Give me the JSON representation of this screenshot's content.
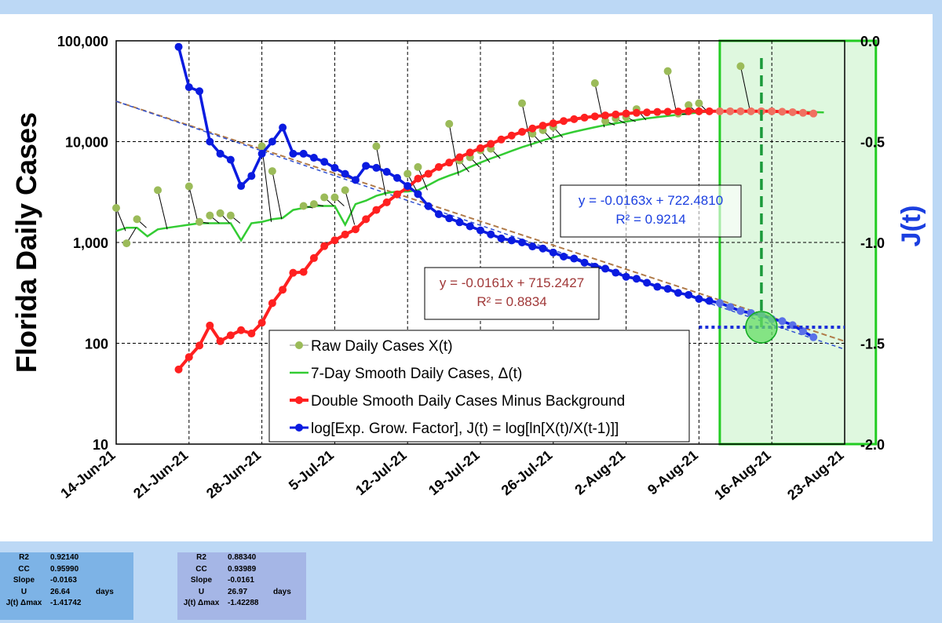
{
  "chart_data": {
    "type": "line",
    "title": "",
    "ylabel": "Florida Daily Cases",
    "ylabel_right": "J(t)",
    "yscale": "log",
    "ylim": [
      10,
      100000
    ],
    "ylim_right": [
      -2.0,
      0.0
    ],
    "grid": true,
    "legend_placement": "bottom-center",
    "colors": {
      "raw": "#9bbb59",
      "smooth7": "#33cc33",
      "double": "#ff2020",
      "jt": "#0a1be0",
      "fit_red": "#a04040",
      "fit_blue": "#1030c0",
      "highlight": "#b8f0b8"
    },
    "x_tick_labels": [
      "14-Jun-21",
      "21-Jun-21",
      "28-Jun-21",
      "5-Jul-21",
      "12-Jul-21",
      "19-Jul-21",
      "26-Jul-21",
      "2-Aug-21",
      "9-Aug-21",
      "16-Aug-21",
      "23-Aug-21"
    ],
    "y_tick_labels": [
      "10",
      "100",
      "1,000",
      "10,000",
      "100,000"
    ],
    "y_tick_values": [
      10,
      100,
      1000,
      10000,
      100000
    ],
    "y2_tick_labels": [
      "-2.0",
      "-1.5",
      "-1.0",
      "-0.5",
      "0.0"
    ],
    "y2_tick_values": [
      -2.0,
      -1.5,
      -1.0,
      -0.5,
      0.0
    ],
    "x_start": "2021-06-14",
    "x_end": "2021-08-23",
    "highlight_region": [
      "2021-08-11",
      "2021-08-26"
    ],
    "series": [
      {
        "name": "Raw Daily Cases X(t)",
        "x": [
          "2021-06-14",
          "2021-06-15",
          "2021-06-16",
          "2021-06-18",
          "2021-06-21",
          "2021-06-22",
          "2021-06-23",
          "2021-06-24",
          "2021-06-25",
          "2021-06-28",
          "2021-06-29",
          "2021-07-02",
          "2021-07-03",
          "2021-07-04",
          "2021-07-05",
          "2021-07-06",
          "2021-07-09",
          "2021-07-12",
          "2021-07-13",
          "2021-07-16",
          "2021-07-17",
          "2021-07-18",
          "2021-07-19",
          "2021-07-20",
          "2021-07-23",
          "2021-07-24",
          "2021-07-25",
          "2021-07-26",
          "2021-07-30",
          "2021-07-31",
          "2021-08-01",
          "2021-08-02",
          "2021-08-03",
          "2021-08-06",
          "2021-08-07",
          "2021-08-08",
          "2021-08-09",
          "2021-08-13"
        ],
        "values": [
          2200,
          980,
          1700,
          3300,
          3600,
          1600,
          1850,
          1950,
          1850,
          9000,
          5100,
          2300,
          2400,
          2800,
          2800,
          3300,
          9000,
          4800,
          5600,
          15000,
          6500,
          7000,
          8200,
          8500,
          24000,
          12000,
          13000,
          14000,
          38000,
          16000,
          17000,
          17500,
          21000,
          50000,
          19000,
          23000,
          24000,
          56000
        ]
      },
      {
        "name": "7-Day Smooth Daily Cases, Δ(t)",
        "x": [
          "2021-06-14",
          "2021-06-15",
          "2021-06-16",
          "2021-06-17",
          "2021-06-18",
          "2021-06-19",
          "2021-06-20",
          "2021-06-21",
          "2021-06-22",
          "2021-06-23",
          "2021-06-24",
          "2021-06-25",
          "2021-06-26",
          "2021-06-27",
          "2021-06-28",
          "2021-06-29",
          "2021-06-30",
          "2021-07-01",
          "2021-07-02",
          "2021-07-03",
          "2021-07-04",
          "2021-07-05",
          "2021-07-06",
          "2021-07-07",
          "2021-07-08",
          "2021-07-09",
          "2021-07-10",
          "2021-07-11",
          "2021-07-12",
          "2021-07-13",
          "2021-07-14",
          "2021-07-15",
          "2021-07-16",
          "2021-07-17",
          "2021-07-18",
          "2021-07-19",
          "2021-07-20",
          "2021-07-21",
          "2021-07-22",
          "2021-07-23",
          "2021-07-24",
          "2021-07-25",
          "2021-07-26",
          "2021-07-27",
          "2021-07-28",
          "2021-07-29",
          "2021-07-30",
          "2021-07-31",
          "2021-08-01",
          "2021-08-02",
          "2021-08-03",
          "2021-08-04",
          "2021-08-05",
          "2021-08-06",
          "2021-08-07",
          "2021-08-08",
          "2021-08-09",
          "2021-08-10",
          "2021-08-11",
          "2021-08-12",
          "2021-08-13",
          "2021-08-14",
          "2021-08-15",
          "2021-08-16",
          "2021-08-17",
          "2021-08-18",
          "2021-08-19",
          "2021-08-20",
          "2021-08-21"
        ],
        "values": [
          1300,
          1400,
          1400,
          1150,
          1350,
          1400,
          1450,
          1500,
          1550,
          1550,
          1550,
          1550,
          1050,
          1550,
          1600,
          1700,
          1750,
          2100,
          2200,
          2300,
          2300,
          2300,
          1500,
          2400,
          2600,
          2900,
          3100,
          3200,
          3200,
          3300,
          3700,
          4200,
          4600,
          5000,
          5600,
          6200,
          6800,
          7400,
          8100,
          8800,
          9500,
          10300,
          11000,
          11800,
          12500,
          13200,
          13900,
          14600,
          15200,
          15800,
          16400,
          17000,
          17500,
          18000,
          18500,
          19000,
          19500,
          19800,
          20000,
          20100,
          20200,
          20200,
          20100,
          20000,
          19900,
          19800,
          19700,
          19600,
          19500
        ]
      },
      {
        "name": "Double Smooth Daily Cases Minus Background",
        "x": [
          "2021-06-20",
          "2021-06-21",
          "2021-06-22",
          "2021-06-23",
          "2021-06-24",
          "2021-06-25",
          "2021-06-26",
          "2021-06-27",
          "2021-06-28",
          "2021-06-29",
          "2021-06-30",
          "2021-07-01",
          "2021-07-02",
          "2021-07-03",
          "2021-07-04",
          "2021-07-05",
          "2021-07-06",
          "2021-07-07",
          "2021-07-08",
          "2021-07-09",
          "2021-07-10",
          "2021-07-11",
          "2021-07-12",
          "2021-07-13",
          "2021-07-14",
          "2021-07-15",
          "2021-07-16",
          "2021-07-17",
          "2021-07-18",
          "2021-07-19",
          "2021-07-20",
          "2021-07-21",
          "2021-07-22",
          "2021-07-23",
          "2021-07-24",
          "2021-07-25",
          "2021-07-26",
          "2021-07-27",
          "2021-07-28",
          "2021-07-29",
          "2021-07-30",
          "2021-07-31",
          "2021-08-01",
          "2021-08-02",
          "2021-08-03",
          "2021-08-04",
          "2021-08-05",
          "2021-08-06",
          "2021-08-07",
          "2021-08-08",
          "2021-08-09",
          "2021-08-10",
          "2021-08-11",
          "2021-08-12",
          "2021-08-13",
          "2021-08-14",
          "2021-08-15",
          "2021-08-16",
          "2021-08-17",
          "2021-08-18",
          "2021-08-19",
          "2021-08-20"
        ],
        "values": [
          55,
          73,
          95,
          150,
          105,
          120,
          135,
          125,
          160,
          250,
          340,
          500,
          510,
          700,
          920,
          1050,
          1200,
          1350,
          1700,
          2100,
          2500,
          3000,
          3500,
          4300,
          4800,
          5600,
          6200,
          7000,
          7800,
          8600,
          9500,
          10500,
          11500,
          12500,
          13500,
          14400,
          15200,
          16000,
          16700,
          17300,
          17800,
          18200,
          18600,
          19000,
          19300,
          19500,
          19700,
          19800,
          19900,
          20000,
          20000,
          20000,
          20000,
          20000,
          20000,
          20000,
          20000,
          20000,
          19800,
          19600,
          19300,
          19000
        ]
      },
      {
        "name": "log[Exp. Grow. Factor], J(t) = log[ln[X(t)/X(t-1)]]",
        "x": [
          "2021-06-20",
          "2021-06-21",
          "2021-06-22",
          "2021-06-23",
          "2021-06-24",
          "2021-06-25",
          "2021-06-26",
          "2021-06-27",
          "2021-06-28",
          "2021-06-29",
          "2021-06-30",
          "2021-07-01",
          "2021-07-02",
          "2021-07-03",
          "2021-07-04",
          "2021-07-05",
          "2021-07-06",
          "2021-07-07",
          "2021-07-08",
          "2021-07-09",
          "2021-07-10",
          "2021-07-11",
          "2021-07-12",
          "2021-07-13",
          "2021-07-14",
          "2021-07-15",
          "2021-07-16",
          "2021-07-17",
          "2021-07-18",
          "2021-07-19",
          "2021-07-20",
          "2021-07-21",
          "2021-07-22",
          "2021-07-23",
          "2021-07-24",
          "2021-07-25",
          "2021-07-26",
          "2021-07-27",
          "2021-07-28",
          "2021-07-29",
          "2021-07-30",
          "2021-07-31",
          "2021-08-01",
          "2021-08-02",
          "2021-08-03",
          "2021-08-04",
          "2021-08-05",
          "2021-08-06",
          "2021-08-07",
          "2021-08-08",
          "2021-08-09",
          "2021-08-10",
          "2021-08-11",
          "2021-08-12",
          "2021-08-13",
          "2021-08-14",
          "2021-08-15",
          "2021-08-16",
          "2021-08-17",
          "2021-08-18",
          "2021-08-19",
          "2021-08-20"
        ],
        "values": [
          -0.03,
          -0.23,
          -0.25,
          -0.5,
          -0.56,
          -0.59,
          -0.72,
          -0.67,
          -0.56,
          -0.5,
          -0.43,
          -0.56,
          -0.56,
          -0.58,
          -0.6,
          -0.63,
          -0.66,
          -0.69,
          -0.62,
          -0.63,
          -0.65,
          -0.68,
          -0.72,
          -0.76,
          -0.82,
          -0.86,
          -0.88,
          -0.9,
          -0.92,
          -0.94,
          -0.96,
          -0.98,
          -0.99,
          -1.0,
          -1.02,
          -1.03,
          -1.05,
          -1.07,
          -1.08,
          -1.1,
          -1.12,
          -1.13,
          -1.15,
          -1.17,
          -1.18,
          -1.2,
          -1.22,
          -1.23,
          -1.25,
          -1.26,
          -1.28,
          -1.29,
          -1.3,
          -1.32,
          -1.34,
          -1.35,
          -1.36,
          -1.38,
          -1.39,
          -1.41,
          -1.44,
          -1.47
        ]
      }
    ],
    "fit_lines": [
      {
        "equation": "y = -0.0163x + 722.4810",
        "r2": "R² = 0.9214"
      },
      {
        "equation": "y = -0.0161x + 715.2427",
        "r2": "R² = 0.8834"
      }
    ],
    "fit_line_endpoints": {
      "blue": [
        -0.3,
        -1.53
      ],
      "red": [
        -0.3,
        -1.49
      ]
    },
    "annotations": {
      "jmax_level": -1.42,
      "crossing_date": "2021-08-15"
    }
  },
  "stats_tables": [
    {
      "rows": [
        {
          "k": "R2",
          "v": "0.92140",
          "u": ""
        },
        {
          "k": "CC",
          "v": "0.95990",
          "u": ""
        },
        {
          "k": "Slope",
          "v": "-0.0163",
          "u": ""
        },
        {
          "k": "U",
          "v": "26.64",
          "u": "days"
        },
        {
          "k": "J(t) Δmax",
          "v": "-1.41742",
          "u": ""
        }
      ]
    },
    {
      "rows": [
        {
          "k": "R2",
          "v": "0.88340",
          "u": ""
        },
        {
          "k": "CC",
          "v": "0.93989",
          "u": ""
        },
        {
          "k": "Slope",
          "v": "-0.0161",
          "u": ""
        },
        {
          "k": "U",
          "v": "26.97",
          "u": "days"
        },
        {
          "k": "J(t) Δmax",
          "v": "-1.42288",
          "u": ""
        }
      ]
    }
  ]
}
